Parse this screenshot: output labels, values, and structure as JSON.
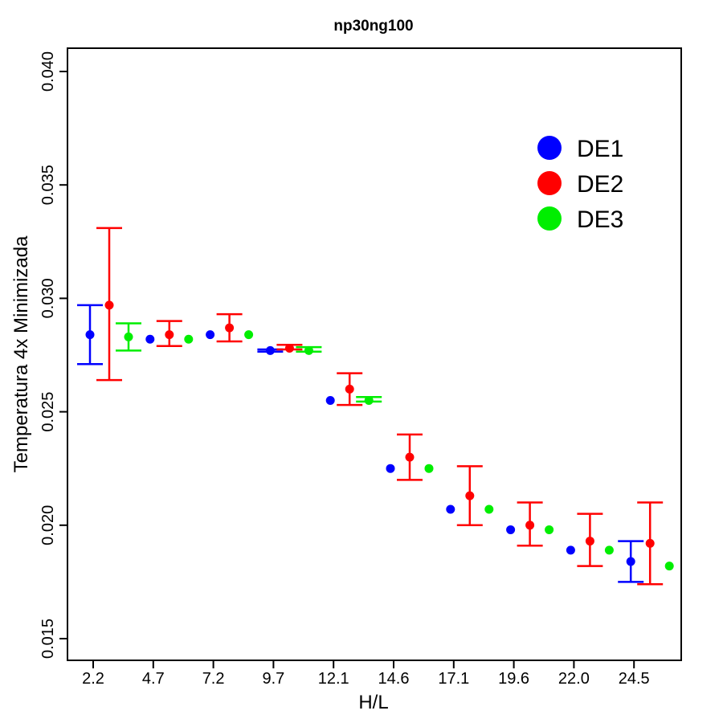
{
  "chart_data": {
    "type": "scatter",
    "title": "np30ng100",
    "xlabel": "H/L",
    "ylabel": "Temperatura 4x Minimizada",
    "ylim": [
      0.014,
      0.041
    ],
    "yticks": [
      "0.015",
      "0.020",
      "0.025",
      "0.030",
      "0.035",
      "0.040"
    ],
    "categories": [
      "2.2",
      "4.7",
      "7.2",
      "9.7",
      "12.1",
      "14.6",
      "17.1",
      "19.6",
      "22.0",
      "24.5"
    ],
    "legend_position": "top-right",
    "grid": false,
    "series": [
      {
        "name": "DE1",
        "color": "#0000ff",
        "x": [
          2.2,
          4.7,
          7.2,
          9.7,
          12.1,
          14.6,
          17.1,
          19.6,
          22.0,
          24.5
        ],
        "y": [
          0.0284,
          0.0282,
          0.0284,
          0.0277,
          0.0255,
          0.0225,
          0.0207,
          0.0198,
          0.0189,
          0.0184
        ],
        "err_low": [
          0.0271,
          null,
          null,
          0.02765,
          null,
          null,
          null,
          null,
          null,
          0.0175
        ],
        "err_high": [
          0.0297,
          null,
          null,
          0.02775,
          null,
          null,
          null,
          null,
          null,
          0.0193
        ]
      },
      {
        "name": "DE2",
        "color": "#ff0000",
        "x": [
          2.2,
          4.7,
          7.2,
          9.7,
          12.1,
          14.6,
          17.1,
          19.6,
          22.0,
          24.5
        ],
        "y": [
          0.0297,
          0.0284,
          0.0287,
          0.0278,
          0.026,
          0.023,
          0.0213,
          0.02,
          0.0193,
          0.0192
        ],
        "err_low": [
          0.0264,
          0.0279,
          0.0281,
          0.02775,
          0.0253,
          0.022,
          0.02,
          0.0191,
          0.0182,
          0.0174
        ],
        "err_high": [
          0.0331,
          0.029,
          0.0293,
          0.02795,
          0.0267,
          0.024,
          0.0226,
          0.021,
          0.0205,
          0.021
        ]
      },
      {
        "name": "DE3",
        "color": "#00ee00",
        "x": [
          2.2,
          4.7,
          7.2,
          9.7,
          12.1,
          14.6,
          17.1,
          19.6,
          22.0,
          24.5
        ],
        "y": [
          0.0283,
          0.0282,
          0.0284,
          0.0277,
          0.0255,
          0.0225,
          0.0207,
          0.0198,
          0.0189,
          0.0182
        ],
        "err_low": [
          0.0277,
          null,
          null,
          0.02765,
          0.02545,
          null,
          null,
          null,
          null,
          null
        ],
        "err_high": [
          0.0289,
          null,
          null,
          0.02785,
          0.02565,
          null,
          null,
          null,
          null,
          null
        ]
      }
    ]
  }
}
